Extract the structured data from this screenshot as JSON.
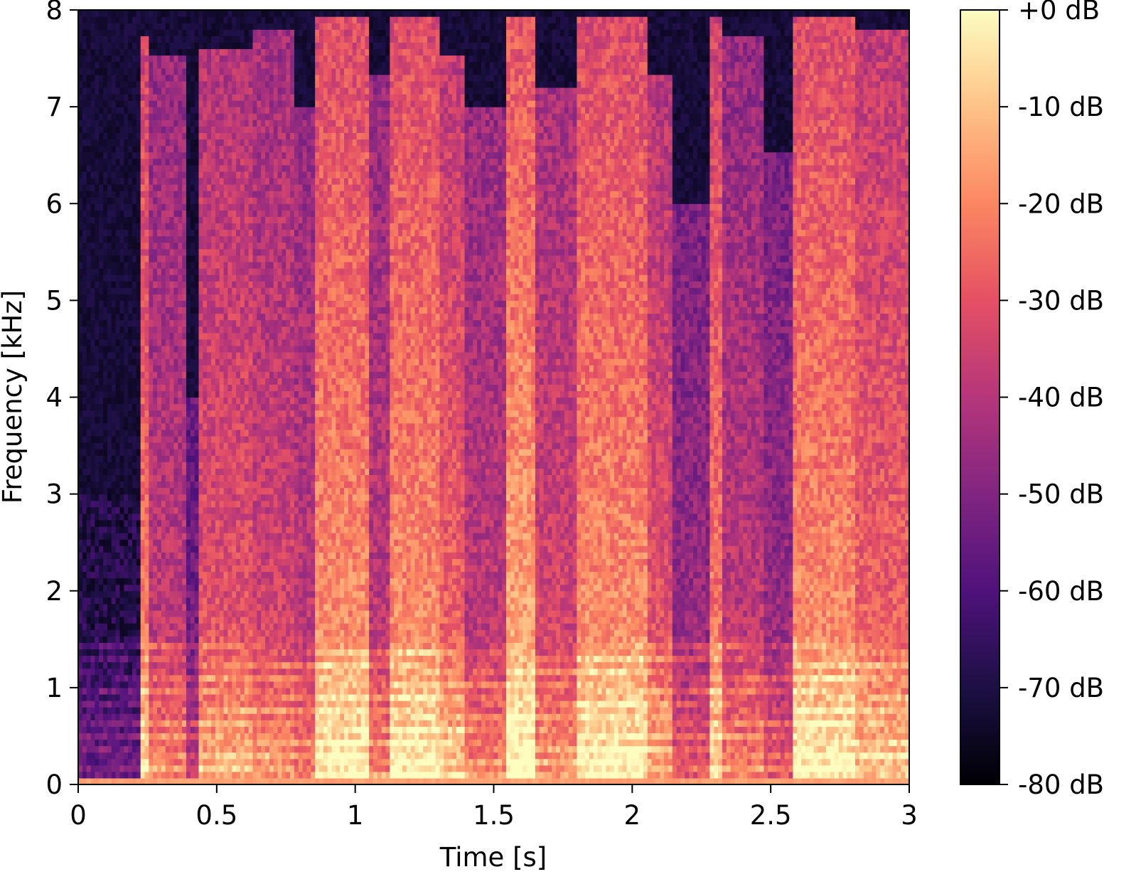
{
  "chart_data": {
    "type": "heatmap",
    "title": "",
    "xlabel": "Time [s]",
    "ylabel": "Frequency [kHz]",
    "xlim": [
      0,
      3
    ],
    "ylim": [
      0,
      8
    ],
    "x_ticks": [
      "0",
      "0.5",
      "1",
      "1.5",
      "2",
      "2.5",
      "3"
    ],
    "x_tick_values": [
      0,
      0.5,
      1,
      1.5,
      2,
      2.5,
      3
    ],
    "y_ticks": [
      "0",
      "1",
      "2",
      "3",
      "4",
      "5",
      "6",
      "7",
      "8"
    ],
    "y_tick_values": [
      0,
      1,
      2,
      3,
      4,
      5,
      6,
      7,
      8
    ],
    "colormap": "magma",
    "colorbar": {
      "range_db": [
        -80,
        0
      ],
      "tick_values": [
        0,
        -10,
        -20,
        -30,
        -40,
        -50,
        -60,
        -70,
        -80
      ],
      "tick_labels": [
        "+0 dB",
        "-10 dB",
        "-20 dB",
        "-30 dB",
        "-40 dB",
        "-50 dB",
        "-60 dB",
        "-70 dB",
        "-80 dB"
      ]
    },
    "grid": false,
    "segments": [
      {
        "t_start": 0.0,
        "t_end": 0.23,
        "level": 0.15,
        "fmax": 3.0
      },
      {
        "t_start": 0.23,
        "t_end": 0.26,
        "level": 0.75,
        "fmax": 7.7
      },
      {
        "t_start": 0.26,
        "t_end": 0.39,
        "level": 0.55,
        "fmax": 7.5
      },
      {
        "t_start": 0.39,
        "t_end": 0.43,
        "level": 0.35,
        "fmax": 4.0
      },
      {
        "t_start": 0.43,
        "t_end": 0.63,
        "level": 0.65,
        "fmax": 7.6
      },
      {
        "t_start": 0.63,
        "t_end": 0.78,
        "level": 0.6,
        "fmax": 7.8
      },
      {
        "t_start": 0.78,
        "t_end": 0.85,
        "level": 0.55,
        "fmax": 7.0
      },
      {
        "t_start": 0.85,
        "t_end": 1.05,
        "level": 0.8,
        "fmax": 7.95
      },
      {
        "t_start": 1.05,
        "t_end": 1.12,
        "level": 0.55,
        "fmax": 7.3
      },
      {
        "t_start": 1.12,
        "t_end": 1.3,
        "level": 0.8,
        "fmax": 7.9
      },
      {
        "t_start": 1.3,
        "t_end": 1.4,
        "level": 0.7,
        "fmax": 7.5
      },
      {
        "t_start": 1.4,
        "t_end": 1.55,
        "level": 0.55,
        "fmax": 7.0
      },
      {
        "t_start": 1.55,
        "t_end": 1.65,
        "level": 0.85,
        "fmax": 7.9
      },
      {
        "t_start": 1.65,
        "t_end": 1.8,
        "level": 0.6,
        "fmax": 7.2
      },
      {
        "t_start": 1.8,
        "t_end": 2.05,
        "level": 0.8,
        "fmax": 7.9
      },
      {
        "t_start": 2.05,
        "t_end": 2.15,
        "level": 0.65,
        "fmax": 7.3
      },
      {
        "t_start": 2.15,
        "t_end": 2.28,
        "level": 0.45,
        "fmax": 6.0
      },
      {
        "t_start": 2.28,
        "t_end": 2.33,
        "level": 0.75,
        "fmax": 7.9
      },
      {
        "t_start": 2.33,
        "t_end": 2.47,
        "level": 0.55,
        "fmax": 7.7
      },
      {
        "t_start": 2.47,
        "t_end": 2.58,
        "level": 0.45,
        "fmax": 6.5
      },
      {
        "t_start": 2.58,
        "t_end": 2.8,
        "level": 0.8,
        "fmax": 7.95
      },
      {
        "t_start": 2.8,
        "t_end": 3.02,
        "level": 0.7,
        "fmax": 7.8
      }
    ]
  }
}
